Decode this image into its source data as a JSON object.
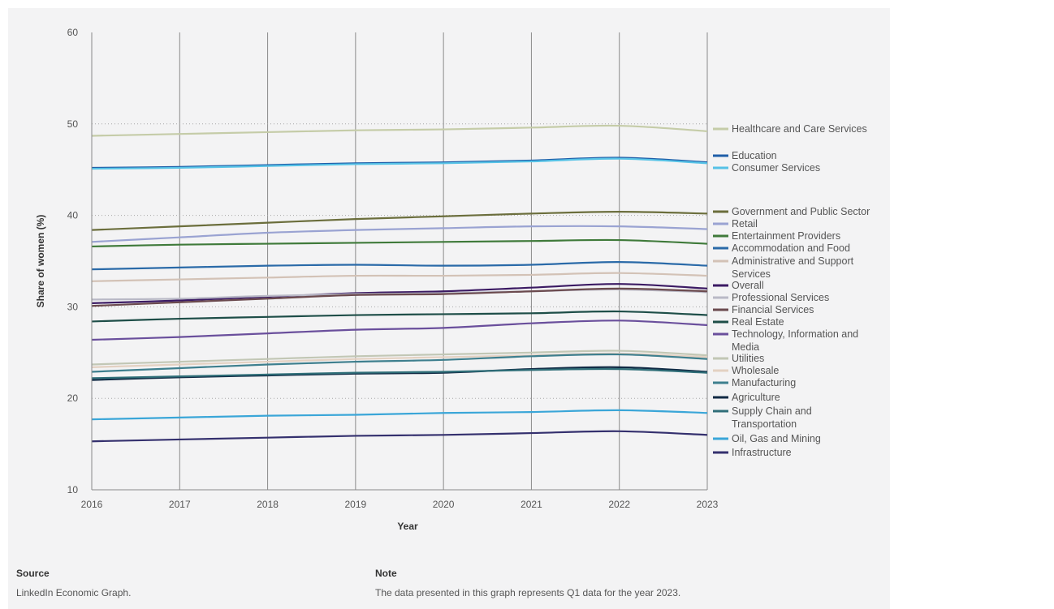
{
  "chart_data": {
    "type": "line",
    "xlabel": "Year",
    "ylabel": "Share of women (%)",
    "ylim": [
      10,
      60
    ],
    "yticks": [
      10,
      20,
      30,
      40,
      50,
      60
    ],
    "x": [
      2016,
      2017,
      2018,
      2019,
      2020,
      2021,
      2022,
      2023
    ],
    "grid": "vertical lines at each year, dotted horizontal lines at each y tick",
    "legend_placement": "right",
    "series": [
      {
        "name": "Healthcare and Care Services",
        "color": "#c5cca8",
        "values": [
          48.7,
          48.9,
          49.1,
          49.3,
          49.4,
          49.6,
          49.8,
          49.2
        ]
      },
      {
        "name": "Education",
        "color": "#1f5ea8",
        "values": [
          45.2,
          45.3,
          45.5,
          45.7,
          45.8,
          46.0,
          46.3,
          45.8
        ]
      },
      {
        "name": "Consumer Services",
        "color": "#56c2e6",
        "values": [
          45.1,
          45.2,
          45.4,
          45.6,
          45.7,
          45.9,
          46.2,
          45.7
        ]
      },
      {
        "name": "Government and Public Sector",
        "color": "#6b6e3c",
        "values": [
          38.4,
          38.8,
          39.2,
          39.6,
          39.9,
          40.2,
          40.4,
          40.2
        ]
      },
      {
        "name": "Retail",
        "color": "#9aa3d2",
        "values": [
          37.1,
          37.6,
          38.1,
          38.4,
          38.6,
          38.8,
          38.8,
          38.5
        ]
      },
      {
        "name": "Entertainment Providers",
        "color": "#3f7a3a",
        "values": [
          36.6,
          36.8,
          36.9,
          37.0,
          37.1,
          37.2,
          37.3,
          36.9
        ]
      },
      {
        "name": "Accommodation and Food",
        "color": "#2a6aa8",
        "values": [
          34.1,
          34.3,
          34.5,
          34.6,
          34.5,
          34.6,
          34.9,
          34.5
        ]
      },
      {
        "name": "Administrative and Support Services",
        "color": "#d3c2b6",
        "values": [
          32.8,
          33.0,
          33.2,
          33.4,
          33.4,
          33.5,
          33.7,
          33.4
        ]
      },
      {
        "name": "Overall",
        "color": "#3b1a63",
        "values": [
          30.4,
          30.7,
          31.1,
          31.5,
          31.7,
          32.1,
          32.5,
          32.0
        ]
      },
      {
        "name": "Professional Services",
        "color": "#b9b9c6",
        "values": [
          30.8,
          30.9,
          31.2,
          31.4,
          31.5,
          31.7,
          31.9,
          31.6
        ]
      },
      {
        "name": "Financial Services",
        "color": "#6b4a4e",
        "values": [
          30.1,
          30.5,
          30.9,
          31.3,
          31.4,
          31.7,
          32.0,
          31.7
        ]
      },
      {
        "name": "Real Estate",
        "color": "#1e4e48",
        "values": [
          28.4,
          28.7,
          28.9,
          29.1,
          29.2,
          29.3,
          29.5,
          29.1
        ]
      },
      {
        "name": "Technology, Information and Media",
        "color": "#6a4f9c",
        "values": [
          26.4,
          26.7,
          27.1,
          27.5,
          27.7,
          28.2,
          28.5,
          28.0
        ]
      },
      {
        "name": "Utilities",
        "color": "#c2c7b5",
        "values": [
          23.7,
          24.0,
          24.3,
          24.6,
          24.8,
          25.0,
          25.2,
          24.7
        ]
      },
      {
        "name": "Wholesale",
        "color": "#e3d1c2",
        "values": [
          23.4,
          23.7,
          24.0,
          24.3,
          24.5,
          24.7,
          24.9,
          24.5
        ]
      },
      {
        "name": "Manufacturing",
        "color": "#3e7f8e",
        "values": [
          22.9,
          23.3,
          23.7,
          24.0,
          24.2,
          24.6,
          24.8,
          24.3
        ]
      },
      {
        "name": "Agriculture",
        "color": "#102a44",
        "values": [
          22.0,
          22.3,
          22.5,
          22.7,
          22.8,
          23.2,
          23.4,
          22.9
        ]
      },
      {
        "name": "Supply Chain and Transportation",
        "color": "#2f6e78",
        "values": [
          22.2,
          22.4,
          22.6,
          22.8,
          22.9,
          23.1,
          23.2,
          22.8
        ]
      },
      {
        "name": "Oil, Gas and Mining",
        "color": "#3aa6d8",
        "values": [
          17.7,
          17.9,
          18.1,
          18.2,
          18.4,
          18.5,
          18.7,
          18.4
        ]
      },
      {
        "name": "Infrastructure",
        "color": "#34306e",
        "values": [
          15.3,
          15.5,
          15.7,
          15.9,
          16.0,
          16.2,
          16.4,
          16.0
        ]
      }
    ]
  },
  "footer": {
    "source_title": "Source",
    "source_text": "LinkedIn Economic Graph.",
    "note_title": "Note",
    "note_text": "The data presented in this graph represents Q1 data for the year 2023."
  }
}
